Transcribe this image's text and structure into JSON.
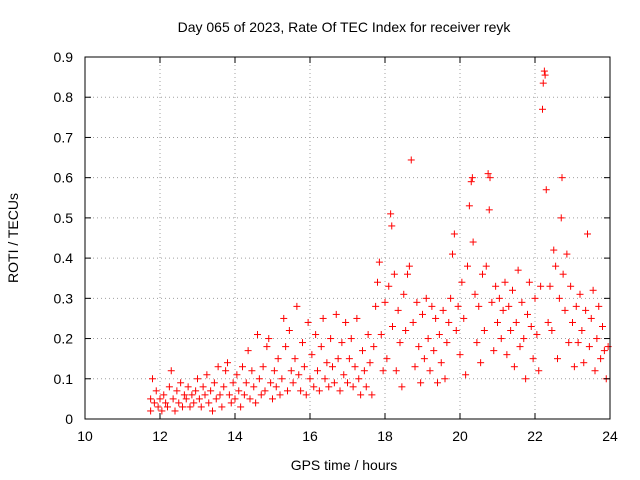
{
  "chart_data": {
    "type": "scatter",
    "title": "Day 065 of 2023, Rate Of TEC Index for receiver reyk",
    "xlabel": "GPS time / hours",
    "ylabel": "ROTI / TECUs",
    "xlim": [
      10,
      24
    ],
    "ylim": [
      0,
      0.9
    ],
    "grid": true,
    "marker": "+",
    "series_color": "#ff0000",
    "x_ticks": [
      "10",
      "12",
      "14",
      "16",
      "18",
      "20",
      "22",
      "24"
    ],
    "y_ticks": [
      "0",
      "0.1",
      "0.2",
      "0.3",
      "0.4",
      "0.5",
      "0.6",
      "0.7",
      "0.8",
      "0.9"
    ],
    "series": [
      {
        "points": [
          [
            11.75,
            0.02
          ],
          [
            11.75,
            0.05
          ],
          [
            11.8,
            0.1
          ],
          [
            11.85,
            0.04
          ],
          [
            11.9,
            0.07
          ],
          [
            11.95,
            0.03
          ],
          [
            12.0,
            0.05
          ],
          [
            12.05,
            0.02
          ],
          [
            12.1,
            0.06
          ],
          [
            12.15,
            0.04
          ],
          [
            12.2,
            0.03
          ],
          [
            12.25,
            0.08
          ],
          [
            12.3,
            0.12
          ],
          [
            12.35,
            0.05
          ],
          [
            12.4,
            0.02
          ],
          [
            12.45,
            0.07
          ],
          [
            12.5,
            0.04
          ],
          [
            12.55,
            0.09
          ],
          [
            12.6,
            0.03
          ],
          [
            12.65,
            0.06
          ],
          [
            12.7,
            0.05
          ],
          [
            12.75,
            0.08
          ],
          [
            12.8,
            0.03
          ],
          [
            12.85,
            0.06
          ],
          [
            12.9,
            0.04
          ],
          [
            12.95,
            0.07
          ],
          [
            13.0,
            0.1
          ],
          [
            13.05,
            0.05
          ],
          [
            13.1,
            0.03
          ],
          [
            13.15,
            0.08
          ],
          [
            13.2,
            0.06
          ],
          [
            13.25,
            0.11
          ],
          [
            13.3,
            0.04
          ],
          [
            13.35,
            0.07
          ],
          [
            13.4,
            0.02
          ],
          [
            13.45,
            0.09
          ],
          [
            13.5,
            0.05
          ],
          [
            13.55,
            0.13
          ],
          [
            13.6,
            0.06
          ],
          [
            13.65,
            0.03
          ],
          [
            13.7,
            0.08
          ],
          [
            13.75,
            0.12
          ],
          [
            13.8,
            0.14
          ],
          [
            13.85,
            0.06
          ],
          [
            13.9,
            0.04
          ],
          [
            13.95,
            0.09
          ],
          [
            14.0,
            0.05
          ],
          [
            14.05,
            0.11
          ],
          [
            14.1,
            0.07
          ],
          [
            14.15,
            0.03
          ],
          [
            14.2,
            0.13
          ],
          [
            14.25,
            0.06
          ],
          [
            14.3,
            0.09
          ],
          [
            14.35,
            0.17
          ],
          [
            14.4,
            0.05
          ],
          [
            14.45,
            0.12
          ],
          [
            14.5,
            0.08
          ],
          [
            14.55,
            0.04
          ],
          [
            14.6,
            0.21
          ],
          [
            14.65,
            0.1
          ],
          [
            14.7,
            0.06
          ],
          [
            14.75,
            0.13
          ],
          [
            14.8,
            0.07
          ],
          [
            14.85,
            0.18
          ],
          [
            14.9,
            0.2
          ],
          [
            14.95,
            0.09
          ],
          [
            15.0,
            0.05
          ],
          [
            15.05,
            0.12
          ],
          [
            15.1,
            0.08
          ],
          [
            15.15,
            0.15
          ],
          [
            15.2,
            0.06
          ],
          [
            15.25,
            0.1
          ],
          [
            15.3,
            0.25
          ],
          [
            15.35,
            0.18
          ],
          [
            15.4,
            0.07
          ],
          [
            15.45,
            0.22
          ],
          [
            15.5,
            0.12
          ],
          [
            15.55,
            0.09
          ],
          [
            15.6,
            0.15
          ],
          [
            15.65,
            0.28
          ],
          [
            15.7,
            0.11
          ],
          [
            15.75,
            0.07
          ],
          [
            15.8,
            0.19
          ],
          [
            15.85,
            0.13
          ],
          [
            15.9,
            0.06
          ],
          [
            15.95,
            0.24
          ],
          [
            16.0,
            0.1
          ],
          [
            16.05,
            0.16
          ],
          [
            16.1,
            0.08
          ],
          [
            16.15,
            0.21
          ],
          [
            16.2,
            0.12
          ],
          [
            16.25,
            0.07
          ],
          [
            16.3,
            0.18
          ],
          [
            16.35,
            0.25
          ],
          [
            16.4,
            0.1
          ],
          [
            16.45,
            0.14
          ],
          [
            16.5,
            0.08
          ],
          [
            16.55,
            0.2
          ],
          [
            16.6,
            0.13
          ],
          [
            16.65,
            0.09
          ],
          [
            16.7,
            0.26
          ],
          [
            16.75,
            0.15
          ],
          [
            16.8,
            0.07
          ],
          [
            16.85,
            0.19
          ],
          [
            16.9,
            0.11
          ],
          [
            16.95,
            0.24
          ],
          [
            17.0,
            0.09
          ],
          [
            17.05,
            0.15
          ],
          [
            17.1,
            0.2
          ],
          [
            17.15,
            0.08
          ],
          [
            17.2,
            0.13
          ],
          [
            17.25,
            0.25
          ],
          [
            17.3,
            0.1
          ],
          [
            17.35,
            0.06
          ],
          [
            17.4,
            0.17
          ],
          [
            17.45,
            0.12
          ],
          [
            17.5,
            0.08
          ],
          [
            17.55,
            0.21
          ],
          [
            17.6,
            0.14
          ],
          [
            17.65,
            0.06
          ],
          [
            17.7,
            0.18
          ],
          [
            17.75,
            0.28
          ],
          [
            17.8,
            0.34
          ],
          [
            17.85,
            0.39
          ],
          [
            17.9,
            0.21
          ],
          [
            17.95,
            0.12
          ],
          [
            18.0,
            0.29
          ],
          [
            18.05,
            0.15
          ],
          [
            18.1,
            0.33
          ],
          [
            18.15,
            0.51
          ],
          [
            18.18,
            0.48
          ],
          [
            18.2,
            0.23
          ],
          [
            18.25,
            0.36
          ],
          [
            18.3,
            0.12
          ],
          [
            18.35,
            0.27
          ],
          [
            18.4,
            0.19
          ],
          [
            18.45,
            0.08
          ],
          [
            18.5,
            0.31
          ],
          [
            18.55,
            0.22
          ],
          [
            18.6,
            0.36
          ],
          [
            18.65,
            0.38
          ],
          [
            18.7,
            0.644
          ],
          [
            18.75,
            0.24
          ],
          [
            18.8,
            0.13
          ],
          [
            18.85,
            0.29
          ],
          [
            18.9,
            0.18
          ],
          [
            18.95,
            0.09
          ],
          [
            19.0,
            0.26
          ],
          [
            19.05,
            0.15
          ],
          [
            19.1,
            0.3
          ],
          [
            19.15,
            0.2
          ],
          [
            19.2,
            0.12
          ],
          [
            19.25,
            0.28
          ],
          [
            19.3,
            0.17
          ],
          [
            19.35,
            0.25
          ],
          [
            19.4,
            0.09
          ],
          [
            19.45,
            0.21
          ],
          [
            19.5,
            0.14
          ],
          [
            19.55,
            0.27
          ],
          [
            19.6,
            0.1
          ],
          [
            19.65,
            0.19
          ],
          [
            19.7,
            0.24
          ],
          [
            19.75,
            0.3
          ],
          [
            19.8,
            0.41
          ],
          [
            19.85,
            0.46
          ],
          [
            19.9,
            0.22
          ],
          [
            19.95,
            0.28
          ],
          [
            20.0,
            0.16
          ],
          [
            20.05,
            0.34
          ],
          [
            20.1,
            0.25
          ],
          [
            20.15,
            0.11
          ],
          [
            20.2,
            0.38
          ],
          [
            20.25,
            0.53
          ],
          [
            20.3,
            0.59
          ],
          [
            20.33,
            0.6
          ],
          [
            20.35,
            0.44
          ],
          [
            20.4,
            0.31
          ],
          [
            20.45,
            0.19
          ],
          [
            20.5,
            0.28
          ],
          [
            20.55,
            0.14
          ],
          [
            20.6,
            0.36
          ],
          [
            20.65,
            0.22
          ],
          [
            20.7,
            0.38
          ],
          [
            20.75,
            0.61
          ],
          [
            20.78,
            0.52
          ],
          [
            20.8,
            0.6
          ],
          [
            20.85,
            0.29
          ],
          [
            20.9,
            0.17
          ],
          [
            20.95,
            0.33
          ],
          [
            21.0,
            0.24
          ],
          [
            21.05,
            0.3
          ],
          [
            21.1,
            0.2
          ],
          [
            21.15,
            0.27
          ],
          [
            21.2,
            0.34
          ],
          [
            21.25,
            0.16
          ],
          [
            21.3,
            0.28
          ],
          [
            21.35,
            0.22
          ],
          [
            21.4,
            0.32
          ],
          [
            21.45,
            0.13
          ],
          [
            21.5,
            0.24
          ],
          [
            21.55,
            0.37
          ],
          [
            21.6,
            0.18
          ],
          [
            21.65,
            0.29
          ],
          [
            21.7,
            0.2
          ],
          [
            21.75,
            0.1
          ],
          [
            21.8,
            0.26
          ],
          [
            21.85,
            0.34
          ],
          [
            21.9,
            0.23
          ],
          [
            21.95,
            0.15
          ],
          [
            22.0,
            0.3
          ],
          [
            22.05,
            0.21
          ],
          [
            22.1,
            0.12
          ],
          [
            22.15,
            0.33
          ],
          [
            22.2,
            0.77
          ],
          [
            22.22,
            0.835
          ],
          [
            22.25,
            0.865
          ],
          [
            22.27,
            0.855
          ],
          [
            22.3,
            0.57
          ],
          [
            22.35,
            0.24
          ],
          [
            22.4,
            0.33
          ],
          [
            22.45,
            0.22
          ],
          [
            22.5,
            0.42
          ],
          [
            22.55,
            0.38
          ],
          [
            22.6,
            0.15
          ],
          [
            22.65,
            0.3
          ],
          [
            22.7,
            0.5
          ],
          [
            22.72,
            0.6
          ],
          [
            22.75,
            0.36
          ],
          [
            22.8,
            0.27
          ],
          [
            22.85,
            0.41
          ],
          [
            22.9,
            0.19
          ],
          [
            22.95,
            0.33
          ],
          [
            23.0,
            0.24
          ],
          [
            23.05,
            0.13
          ],
          [
            23.1,
            0.28
          ],
          [
            23.15,
            0.19
          ],
          [
            23.2,
            0.31
          ],
          [
            23.25,
            0.22
          ],
          [
            23.3,
            0.14
          ],
          [
            23.35,
            0.27
          ],
          [
            23.4,
            0.46
          ],
          [
            23.45,
            0.18
          ],
          [
            23.5,
            0.25
          ],
          [
            23.55,
            0.32
          ],
          [
            23.6,
            0.12
          ],
          [
            23.65,
            0.2
          ],
          [
            23.7,
            0.28
          ],
          [
            23.75,
            0.15
          ],
          [
            23.8,
            0.23
          ],
          [
            23.85,
            0.17
          ],
          [
            23.9,
            0.1
          ],
          [
            23.95,
            0.18
          ]
        ]
      }
    ]
  }
}
